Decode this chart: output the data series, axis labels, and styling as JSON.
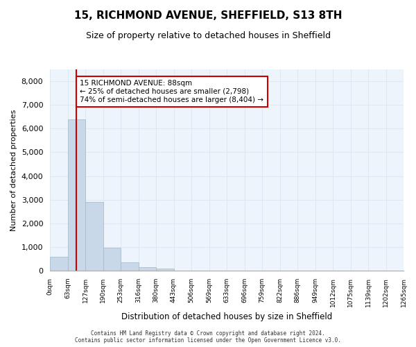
{
  "title": "15, RICHMOND AVENUE, SHEFFIELD, S13 8TH",
  "subtitle": "Size of property relative to detached houses in Sheffield",
  "xlabel": "Distribution of detached houses by size in Sheffield",
  "ylabel": "Number of detached properties",
  "bar_values": [
    600,
    6400,
    2900,
    960,
    350,
    140,
    80,
    0,
    0,
    0,
    0,
    0,
    0,
    0,
    0,
    0,
    0,
    0,
    0,
    0
  ],
  "bar_labels": [
    "0sqm",
    "63sqm",
    "127sqm",
    "190sqm",
    "253sqm",
    "316sqm",
    "380sqm",
    "443sqm",
    "506sqm",
    "569sqm",
    "633sqm",
    "696sqm",
    "759sqm",
    "822sqm",
    "886sqm",
    "949sqm",
    "1012sqm",
    "1075sqm",
    "1139sqm",
    "1202sqm",
    "1265sqm"
  ],
  "bar_color": "#c8d8e8",
  "bar_edgecolor": "#a0b8cc",
  "grid_color": "#dde8f0",
  "background_color": "#eef4fb",
  "vline_x": 1,
  "vline_color": "#cc0000",
  "annotation_text": "15 RICHMOND AVENUE: 88sqm\n← 25% of detached houses are smaller (2,798)\n74% of semi-detached houses are larger (8,404) →",
  "annotation_box_color": "#ffffff",
  "annotation_box_edgecolor": "#cc0000",
  "ylim": [
    0,
    8500
  ],
  "yticks": [
    0,
    1000,
    2000,
    3000,
    4000,
    5000,
    6000,
    7000,
    8000
  ],
  "footer_line1": "Contains HM Land Registry data © Crown copyright and database right 2024.",
  "footer_line2": "Contains public sector information licensed under the Open Government Licence v3.0."
}
